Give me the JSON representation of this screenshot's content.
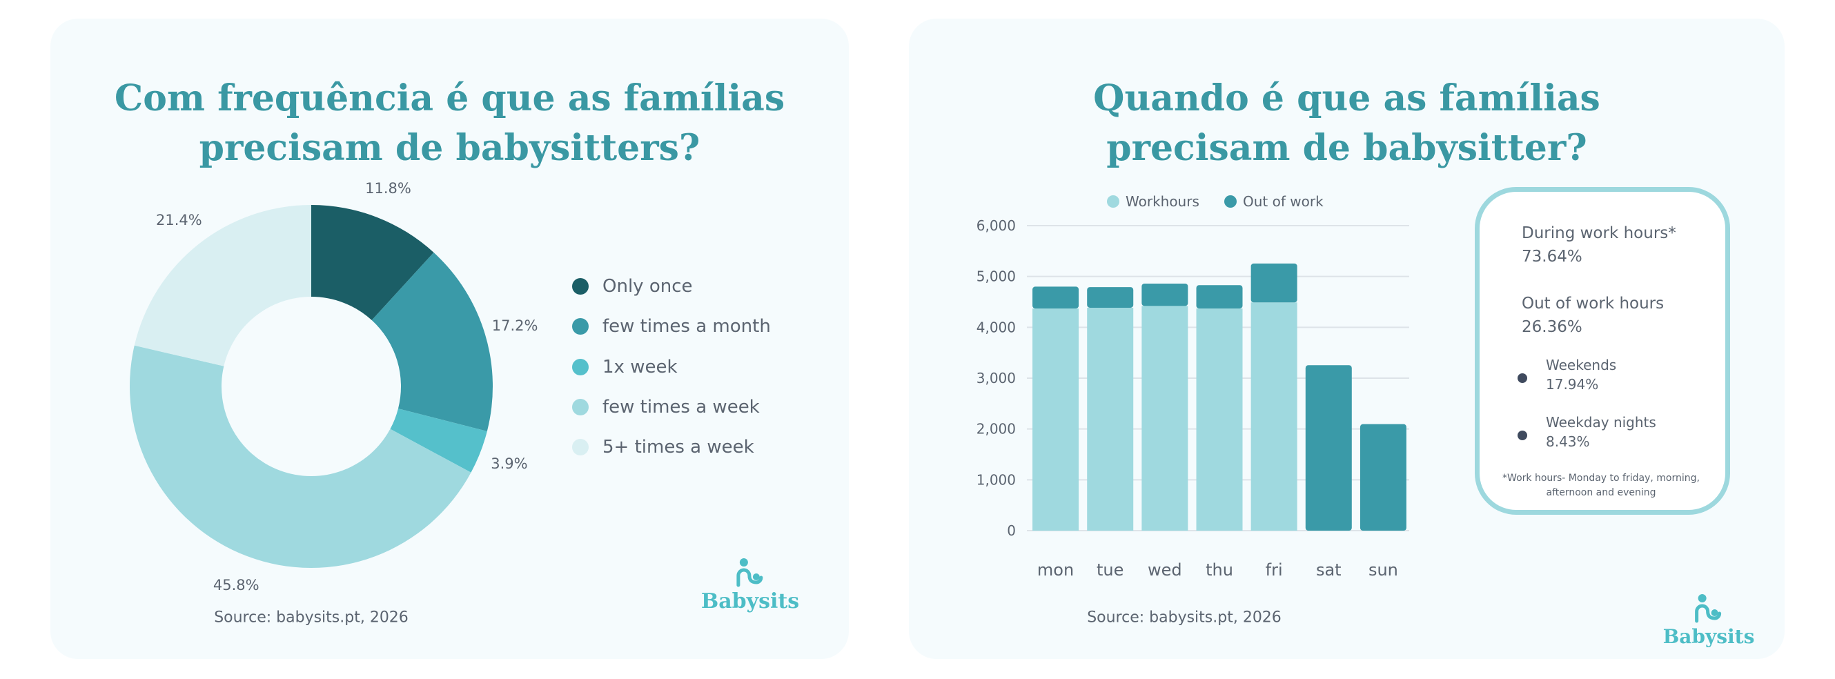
{
  "left": {
    "title_line1": "Com frequência é que as famílias",
    "title_line2": "precisam de babysitters?",
    "source": "Source: babysits.pt, 2026",
    "logo": "Babysits"
  },
  "right": {
    "title_line1": "Quando é que as famílias",
    "title_line2": "precisam de babysitter?",
    "source": "Source: babysits.pt, 2026",
    "logo": "Babysits",
    "summary": {
      "during_label": "During work hours*",
      "during_value": "73.64%",
      "out_label": "Out of work hours",
      "out_value": "26.36%",
      "weekends_label": "Weekends",
      "weekends_value": "17.94%",
      "nights_label": "Weekday nights",
      "nights_value": "8.43%",
      "footnote_line1": "*Work hours- Monday to friday, morning,",
      "footnote_line2": "afternoon and evening"
    }
  },
  "chart_data": [
    {
      "type": "pie",
      "donut": true,
      "categories": [
        "Only once",
        "few times a month",
        "1x week",
        "few times a week",
        "5+ times a week"
      ],
      "values": [
        11.8,
        17.2,
        3.9,
        45.8,
        21.4
      ],
      "labels": [
        "11.8%",
        "17.2%",
        "3.9%",
        "45.8%",
        "21.4%"
      ],
      "colors": [
        "#1b5e66",
        "#3a9aa8",
        "#55c0cb",
        "#9fd9df",
        "#d9eff2"
      ],
      "legend": "right"
    },
    {
      "type": "bar",
      "stacked": true,
      "categories": [
        "mon",
        "tue",
        "wed",
        "thu",
        "fri",
        "sat",
        "sun"
      ],
      "series": [
        {
          "name": "Workhours",
          "color": "#9fd9df",
          "values": [
            4370,
            4385,
            4420,
            4370,
            4490,
            0,
            0
          ]
        },
        {
          "name": "Out of work",
          "color": "#3a9aa8",
          "values": [
            430,
            405,
            440,
            460,
            765,
            3255,
            2095
          ]
        }
      ],
      "ylim": [
        0,
        6000
      ],
      "yticks": [
        "0",
        "1,000",
        "2,000",
        "3,000",
        "4,000",
        "5,000",
        "6,000"
      ],
      "grid": true,
      "legend": "top"
    }
  ]
}
